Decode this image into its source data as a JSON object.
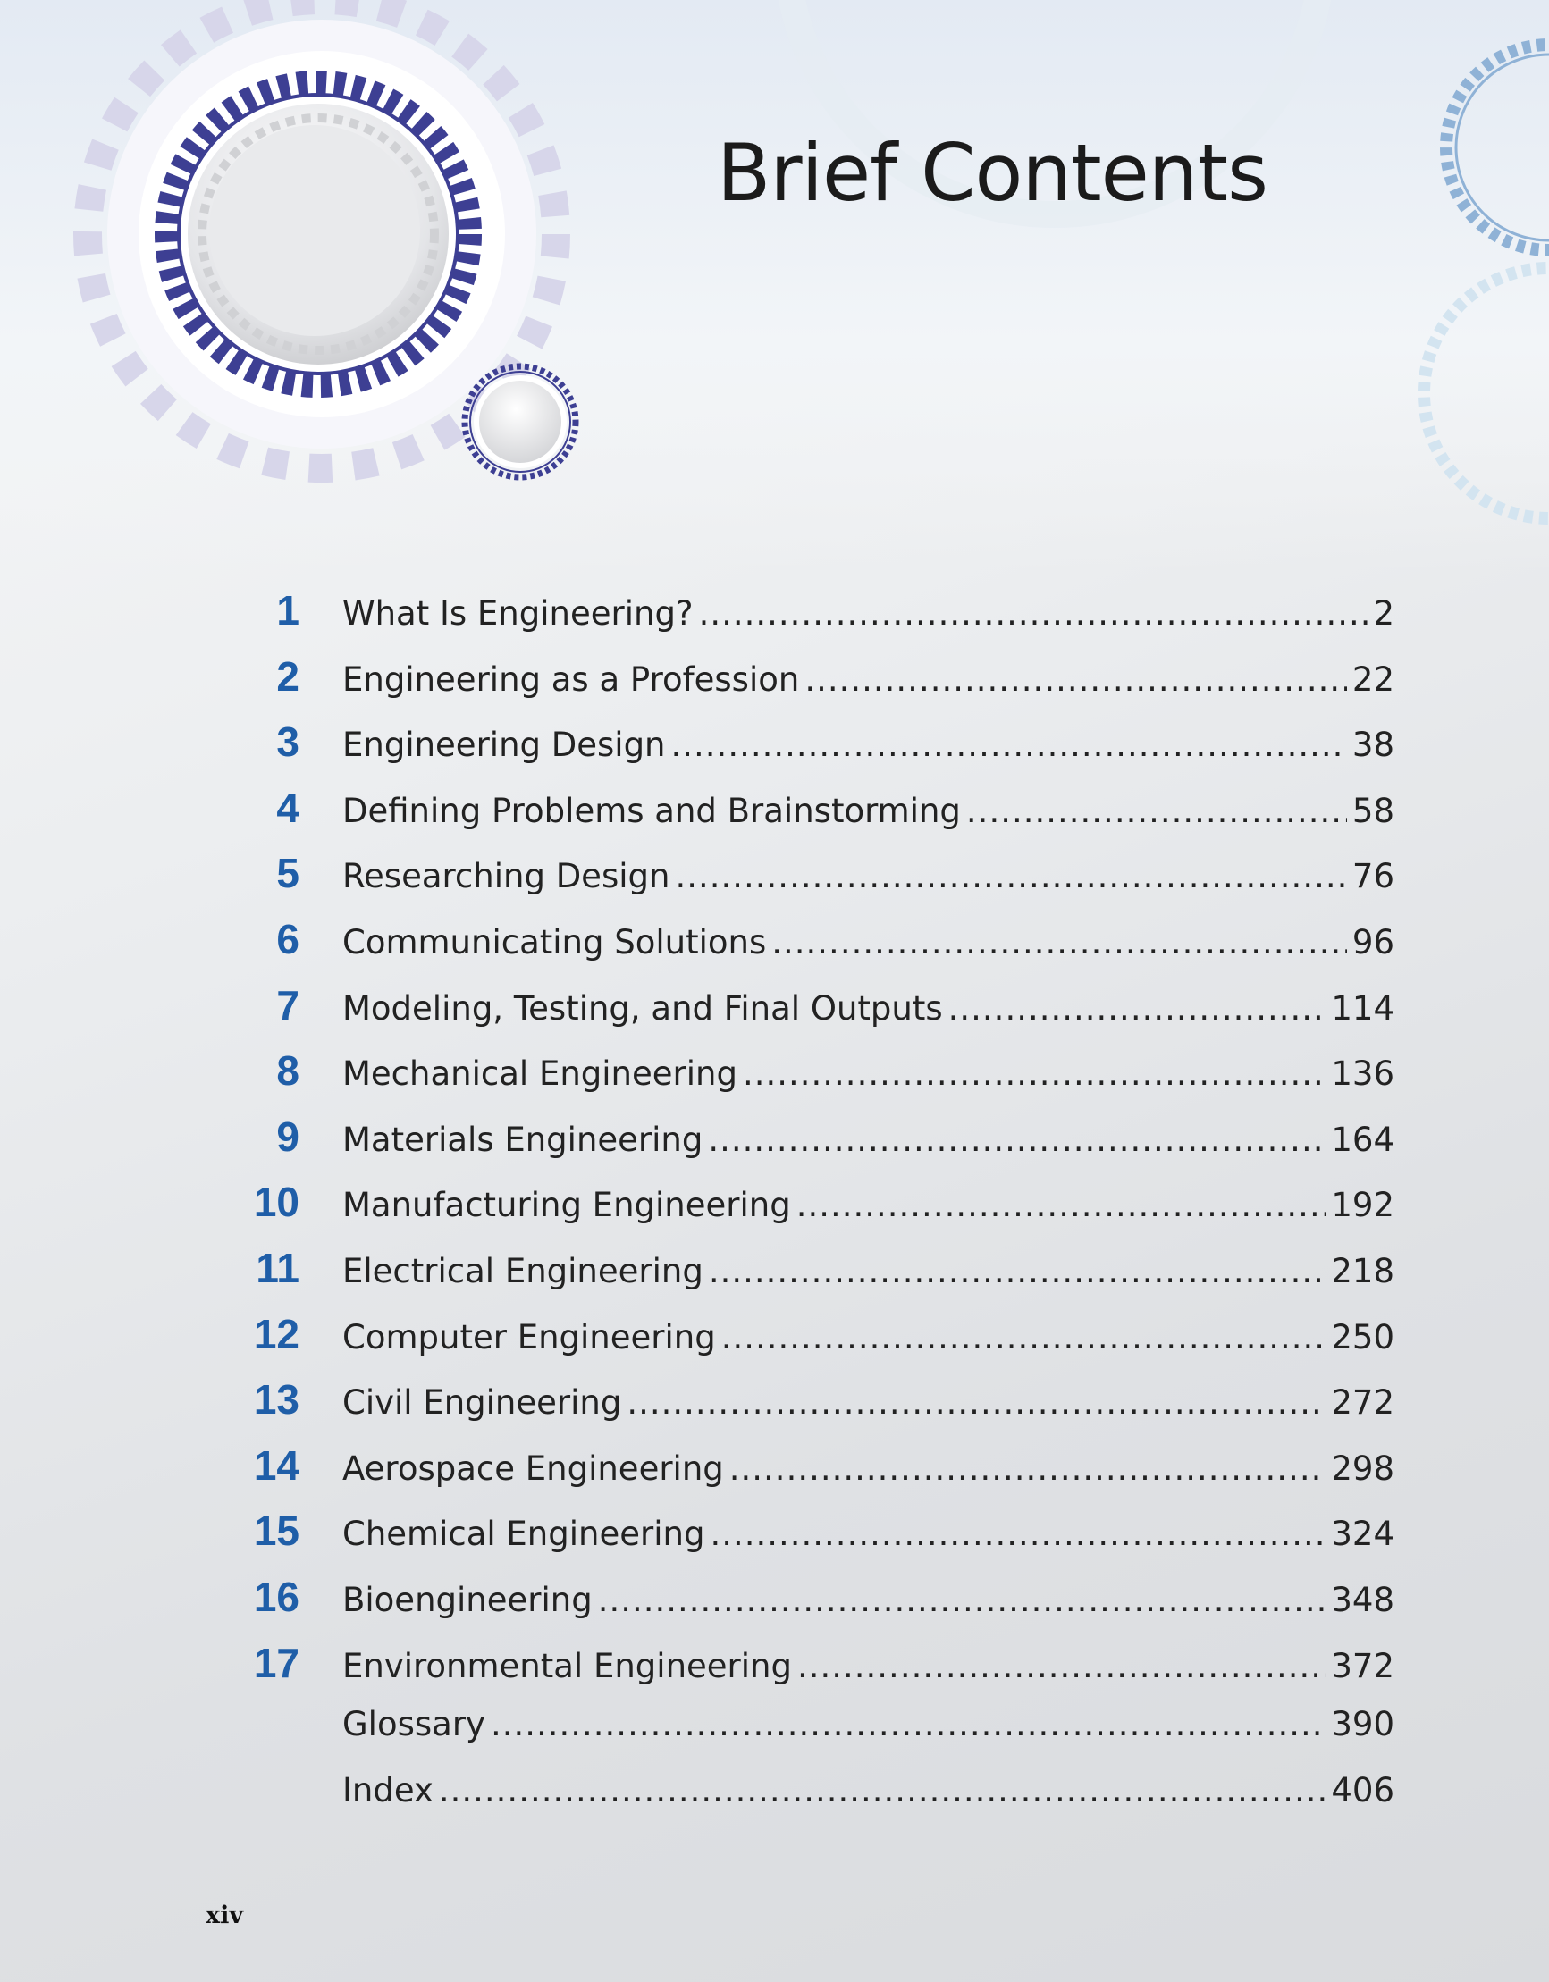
{
  "title": "Brief Contents",
  "folio": "xiv",
  "entries": [
    {
      "num": "1",
      "label": "What Is Engineering?",
      "page": "2"
    },
    {
      "num": "2",
      "label": "Engineering as a Profession",
      "page": "22"
    },
    {
      "num": "3",
      "label": "Engineering Design",
      "page": "38"
    },
    {
      "num": "4",
      "label": "Defining Problems and Brainstorming",
      "page": "58"
    },
    {
      "num": "5",
      "label": "Researching Design",
      "page": "76"
    },
    {
      "num": "6",
      "label": "Communicating Solutions",
      "page": "96"
    },
    {
      "num": "7",
      "label": "Modeling, Testing, and Final Outputs",
      "page": "114"
    },
    {
      "num": "8",
      "label": "Mechanical Engineering",
      "page": "136"
    },
    {
      "num": "9",
      "label": "Materials Engineering",
      "page": "164"
    },
    {
      "num": "10",
      "label": "Manufacturing Engineering",
      "page": "192"
    },
    {
      "num": "11",
      "label": "Electrical Engineering",
      "page": "218"
    },
    {
      "num": "12",
      "label": "Computer Engineering",
      "page": "250"
    },
    {
      "num": "13",
      "label": "Civil Engineering",
      "page": "272"
    },
    {
      "num": "14",
      "label": "Aerospace Engineering",
      "page": "298"
    },
    {
      "num": "15",
      "label": "Chemical Engineering",
      "page": "324"
    },
    {
      "num": "16",
      "label": "Bioengineering",
      "page": "348"
    },
    {
      "num": "17",
      "label": "Environmental Engineering",
      "page": "372"
    },
    {
      "num": "",
      "label": "Glossary",
      "page": "390"
    },
    {
      "num": "",
      "label": "Index",
      "page": "406"
    }
  ],
  "colors": {
    "chapter_number": "#1f5ea8",
    "gear_ring": "#3d3f93",
    "gear_halo": "#d7d6ea",
    "corner_gear": "#8fb2d6"
  }
}
